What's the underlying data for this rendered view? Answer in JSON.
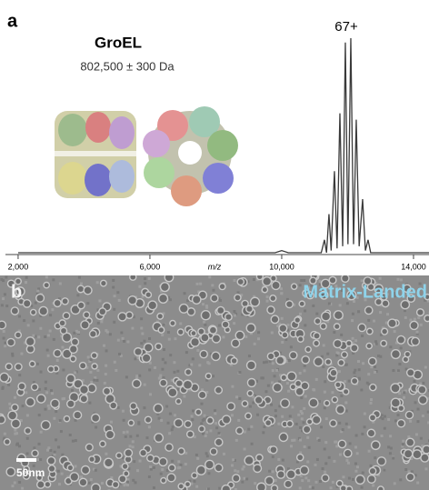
{
  "panel_a": {
    "label": "a",
    "title": "GroEL",
    "mass": "802,500 ± 300 Da",
    "peak_label": "67+"
  },
  "chart_data": {
    "type": "line",
    "x_label": "m/z",
    "color": "#3a3a3a",
    "x": [
      2000,
      9800,
      10000,
      10200,
      11200,
      11297,
      11360,
      11434,
      11500,
      11600,
      11680,
      11766,
      11850,
      11931,
      12010,
      12097,
      12180,
      12262,
      12350,
      12455,
      12540,
      12621,
      12700,
      14470
    ],
    "values": [
      0,
      0,
      1,
      0,
      0,
      6,
      0,
      18,
      1,
      38,
      2,
      65,
      3,
      98,
      4,
      100,
      4,
      62,
      3,
      25,
      1,
      6,
      0,
      0
    ],
    "xlim": [
      1450,
      14470
    ],
    "ylim": [
      0,
      100
    ],
    "xticks": [
      {
        "value": 2000,
        "label": "2,000"
      },
      {
        "value": 6000,
        "label": "6,000"
      },
      {
        "value": 10000,
        "label": "10,000"
      },
      {
        "value": 14000,
        "label": "14,000"
      }
    ]
  },
  "panel_b": {
    "label": "b",
    "caption": "Matrix-Landed",
    "scale_bar": "50nm"
  }
}
